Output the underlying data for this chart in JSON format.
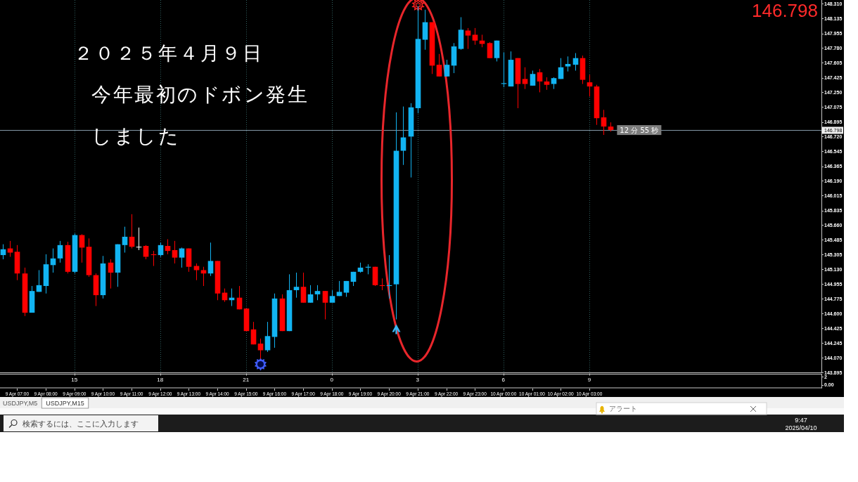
{
  "chart_data": [
    {
      "type": "candlestick",
      "title": "２０２５年４月９日",
      "subtitle": "今年最初のドボン発生しました",
      "x": [
        "2025-04-09T06:30",
        "2025-04-09T06:45",
        "2025-04-09T07:00",
        "2025-04-09T07:15",
        "2025-04-09T07:30",
        "2025-04-09T07:45",
        "2025-04-09T08:00",
        "2025-04-09T08:15",
        "2025-04-09T08:30",
        "2025-04-09T08:45",
        "2025-04-09T09:00",
        "2025-04-09T09:15",
        "2025-04-09T09:30",
        "2025-04-09T09:45",
        "2025-04-09T10:00",
        "2025-04-09T10:15",
        "2025-04-09T10:30",
        "2025-04-09T10:45",
        "2025-04-09T11:00",
        "2025-04-09T11:15",
        "2025-04-09T11:30",
        "2025-04-09T11:45",
        "2025-04-09T12:00",
        "2025-04-09T12:15",
        "2025-04-09T12:30",
        "2025-04-09T12:45",
        "2025-04-09T13:00",
        "2025-04-09T13:15",
        "2025-04-09T13:30",
        "2025-04-09T13:45",
        "2025-04-09T14:00",
        "2025-04-09T14:15",
        "2025-04-09T14:30",
        "2025-04-09T14:45",
        "2025-04-09T15:00",
        "2025-04-09T15:15",
        "2025-04-09T15:30",
        "2025-04-09T15:45",
        "2025-04-09T16:00",
        "2025-04-09T16:15",
        "2025-04-09T16:30",
        "2025-04-09T16:45",
        "2025-04-09T17:00",
        "2025-04-09T17:15",
        "2025-04-09T17:30",
        "2025-04-09T17:45",
        "2025-04-09T18:00",
        "2025-04-09T18:15",
        "2025-04-09T18:30",
        "2025-04-09T18:45",
        "2025-04-09T19:00",
        "2025-04-09T19:15",
        "2025-04-09T19:30",
        "2025-04-09T19:45",
        "2025-04-09T20:00",
        "2025-04-09T20:15",
        "2025-04-09T20:30",
        "2025-04-09T20:45",
        "2025-04-09T21:00",
        "2025-04-09T21:15",
        "2025-04-09T21:30",
        "2025-04-09T21:45",
        "2025-04-09T22:00",
        "2025-04-09T22:15",
        "2025-04-09T22:30",
        "2025-04-09T22:45",
        "2025-04-09T23:00",
        "2025-04-09T23:15",
        "2025-04-09T23:30",
        "2025-04-09T23:45",
        "2025-04-10T00:00",
        "2025-04-10T00:15",
        "2025-04-10T00:30",
        "2025-04-10T00:45",
        "2025-04-10T01:00",
        "2025-04-10T01:15",
        "2025-04-10T01:30",
        "2025-04-10T01:45",
        "2025-04-10T02:00",
        "2025-04-10T02:15",
        "2025-04-10T02:30",
        "2025-04-10T02:45",
        "2025-04-10T03:00",
        "2025-04-10T03:15",
        "2025-04-10T03:30",
        "2025-04-10T03:45"
      ],
      "ohlc": [
        [
          145.3,
          145.43,
          145.25,
          145.37
        ],
        [
          145.38,
          145.47,
          145.28,
          145.33
        ],
        [
          145.34,
          145.42,
          145.0,
          145.08
        ],
        [
          145.08,
          145.15,
          144.57,
          144.61
        ],
        [
          144.61,
          144.93,
          144.61,
          144.87
        ],
        [
          144.86,
          145.12,
          144.86,
          144.94
        ],
        [
          144.93,
          145.31,
          144.84,
          145.19
        ],
        [
          145.18,
          145.38,
          145.09,
          145.26
        ],
        [
          145.26,
          145.47,
          145.21,
          145.42
        ],
        [
          145.42,
          145.46,
          145.08,
          145.1
        ],
        [
          145.1,
          145.56,
          145.08,
          145.54
        ],
        [
          145.54,
          145.55,
          145.21,
          145.39
        ],
        [
          145.4,
          145.5,
          145.04,
          145.06
        ],
        [
          145.06,
          145.08,
          144.69,
          144.82
        ],
        [
          144.82,
          145.29,
          144.78,
          145.2
        ],
        [
          145.21,
          145.25,
          144.9,
          145.09
        ],
        [
          145.09,
          145.43,
          144.92,
          145.43
        ],
        [
          145.42,
          145.64,
          145.33,
          145.52
        ],
        [
          145.52,
          145.79,
          145.38,
          145.4
        ],
        [
          145.4,
          145.63,
          145.36,
          145.4
        ],
        [
          145.41,
          145.42,
          145.25,
          145.28
        ],
        [
          145.31,
          145.35,
          145.17,
          145.3
        ],
        [
          145.3,
          145.45,
          145.28,
          145.42
        ],
        [
          145.41,
          145.49,
          145.31,
          145.35
        ],
        [
          145.36,
          145.47,
          145.2,
          145.27
        ],
        [
          145.27,
          145.39,
          145.15,
          145.38
        ],
        [
          145.38,
          145.38,
          145.1,
          145.16
        ],
        [
          145.17,
          145.2,
          145.0,
          145.12
        ],
        [
          145.12,
          145.16,
          144.93,
          145.08
        ],
        [
          145.08,
          145.45,
          145.05,
          145.23
        ],
        [
          145.23,
          145.23,
          144.76,
          144.84
        ],
        [
          144.85,
          144.9,
          144.74,
          144.76
        ],
        [
          144.76,
          144.9,
          144.69,
          144.79
        ],
        [
          144.79,
          144.93,
          144.65,
          144.65
        ],
        [
          144.66,
          144.66,
          144.39,
          144.39
        ],
        [
          144.41,
          144.5,
          144.23,
          144.23
        ],
        [
          144.24,
          144.3,
          144.06,
          144.16
        ],
        [
          144.16,
          144.5,
          144.14,
          144.33
        ],
        [
          144.32,
          144.84,
          144.19,
          144.78
        ],
        [
          144.78,
          144.83,
          144.39,
          144.39
        ],
        [
          144.39,
          145.07,
          144.39,
          144.88
        ],
        [
          144.88,
          145.09,
          144.79,
          144.92
        ],
        [
          144.92,
          145.09,
          144.73,
          144.73
        ],
        [
          144.73,
          144.94,
          144.73,
          144.83
        ],
        [
          144.83,
          144.94,
          144.76,
          144.87
        ],
        [
          144.87,
          144.87,
          144.53,
          144.73
        ],
        [
          144.73,
          144.88,
          144.73,
          144.81
        ],
        [
          144.81,
          144.99,
          144.81,
          144.86
        ],
        [
          144.85,
          144.99,
          144.8,
          144.99
        ],
        [
          144.98,
          145.1,
          144.93,
          145.1
        ],
        [
          145.1,
          145.21,
          145.09,
          145.15
        ],
        [
          145.15,
          145.19,
          145.07,
          145.16
        ],
        [
          145.16,
          145.16,
          144.93,
          144.94
        ],
        [
          144.94,
          145.02,
          144.88,
          144.93
        ],
        [
          144.93,
          145.3,
          144.78,
          144.94
        ],
        [
          144.95,
          147.01,
          144.53,
          146.55
        ],
        [
          146.55,
          147.08,
          146.38,
          146.71
        ],
        [
          146.72,
          147.12,
          146.23,
          147.07
        ],
        [
          147.06,
          148.28,
          147.0,
          147.89
        ],
        [
          147.88,
          148.24,
          147.76,
          148.09
        ],
        [
          148.09,
          148.09,
          147.47,
          147.57
        ],
        [
          147.58,
          147.71,
          147.44,
          147.44
        ],
        [
          147.44,
          147.64,
          147.44,
          147.58
        ],
        [
          147.57,
          147.84,
          147.48,
          147.8
        ],
        [
          147.77,
          148.15,
          147.76,
          148.0
        ],
        [
          147.99,
          148.02,
          147.77,
          147.93
        ],
        [
          147.94,
          148.02,
          147.82,
          147.87
        ],
        [
          147.87,
          147.94,
          147.79,
          147.83
        ],
        [
          147.84,
          147.85,
          147.66,
          147.66
        ],
        [
          147.66,
          147.87,
          147.62,
          147.87
        ],
        [
          147.35,
          147.73,
          147.31,
          147.36
        ],
        [
          147.32,
          147.74,
          147.32,
          147.64
        ],
        [
          147.66,
          147.66,
          147.06,
          147.35
        ],
        [
          147.41,
          147.55,
          147.29,
          147.35
        ],
        [
          147.33,
          147.51,
          147.33,
          147.47
        ],
        [
          147.49,
          147.53,
          147.25,
          147.38
        ],
        [
          147.38,
          147.43,
          147.28,
          147.34
        ],
        [
          147.35,
          147.43,
          147.29,
          147.42
        ],
        [
          147.41,
          147.66,
          147.41,
          147.55
        ],
        [
          147.56,
          147.68,
          147.5,
          147.59
        ],
        [
          147.58,
          147.72,
          147.51,
          147.66
        ],
        [
          147.66,
          147.69,
          147.35,
          147.4
        ],
        [
          147.37,
          147.46,
          147.2,
          147.32
        ],
        [
          147.32,
          147.34,
          146.86,
          146.94
        ],
        [
          146.95,
          147.04,
          146.74,
          146.84
        ],
        [
          146.84,
          146.89,
          146.78,
          146.8
        ]
      ],
      "colors": [
        "#12b4f2",
        "#ff0000",
        "#ff0000",
        "#ff0000",
        "#12b4f2",
        "#12b4f2",
        "#12b4f2",
        "#12b4f2",
        "#12b4f2",
        "#ff0000",
        "#12b4f2",
        "#ff0000",
        "#ff0000",
        "#ff0000",
        "#12b4f2",
        "#ff0000",
        "#12b4f2",
        "#12b4f2",
        "#ff0000",
        "#ffffff",
        "#ff0000",
        "#ff0000",
        "#12b4f2",
        "#ff0000",
        "#ff0000",
        "#12b4f2",
        "#ff0000",
        "#ff0000",
        "#ff0000",
        "#12b4f2",
        "#ff0000",
        "#ff0000",
        "#12b4f2",
        "#ff0000",
        "#ff0000",
        "#ff0000",
        "#ff0000",
        "#12b4f2",
        "#12b4f2",
        "#ff0000",
        "#12b4f2",
        "#12b4f2",
        "#ff0000",
        "#12b4f2",
        "#12b4f2",
        "#ff0000",
        "#12b4f2",
        "#12b4f2",
        "#12b4f2",
        "#12b4f2",
        "#12b4f2",
        "#12b4f2",
        "#ff0000",
        "#ff0000",
        "#12b4f2",
        "#12b4f2",
        "#12b4f2",
        "#12b4f2",
        "#12b4f2",
        "#12b4f2",
        "#ff0000",
        "#ff0000",
        "#12b4f2",
        "#12b4f2",
        "#12b4f2",
        "#ff0000",
        "#ff0000",
        "#ff0000",
        "#ff0000",
        "#12b4f2",
        "#12b4f2",
        "#12b4f2",
        "#ff0000",
        "#ff0000",
        "#12b4f2",
        "#ff0000",
        "#ff0000",
        "#12b4f2",
        "#12b4f2",
        "#12b4f2",
        "#12b4f2",
        "#ff0000",
        "#ff0000",
        "#ff0000",
        "#ff0000",
        "#ff0000"
      ],
      "xlim": [
        "2025-04-09T06:24",
        "2025-04-10T11:07"
      ],
      "xticks": [
        {
          "value": "2025-04-09T09:00",
          "label": null
        },
        {
          "value": "2025-04-09T12:00",
          "label": null
        },
        {
          "value": "2025-04-09T15:00",
          "label": null
        },
        {
          "value": "2025-04-09T18:00",
          "label": null
        },
        {
          "value": "2025-04-09T21:00",
          "label": null
        },
        {
          "value": "2025-04-10T00:00",
          "label": null
        },
        {
          "value": "2025-04-10T03:00",
          "label": null
        }
      ],
      "ylim": [
        143.895,
        148.356
      ],
      "yticks": [
        {
          "value": 148.31,
          "label": "148.310"
        },
        148.135,
        147.955,
        {
          "value": 147.78,
          "label": "147.780"
        },
        147.605,
        147.425,
        {
          "value": 147.25,
          "label": "147.250"
        },
        147.075,
        146.895,
        {
          "value": 146.72,
          "label": "146.720"
        },
        146.545,
        146.365,
        {
          "value": 146.19,
          "label": "146.190"
        },
        146.015,
        145.835,
        {
          "value": 145.66,
          "label": "145.660"
        },
        145.485,
        145.305,
        {
          "value": 145.13,
          "label": "145.130"
        },
        144.955,
        144.775,
        {
          "value": 144.6,
          "label": "144.600"
        },
        144.425,
        144.245,
        {
          "value": 144.07,
          "label": "144.070"
        },
        143.895
      ],
      "tick_labels": "y",
      "grid": "x",
      "ref_lines": [
        {
          "axis": "y",
          "value": 146.798,
          "label": "146.798",
          "color": "#8497a6"
        }
      ],
      "annotations": [
        "146.798",
        "12 分 55 秒",
        "USDJPY,M5",
        "USDJPY,M15",
        "アラート",
        "検索するには、ここに入力します",
        "9:47",
        "2025/04/10"
      ]
    },
    {
      "type": "line",
      "xlim": [
        "2025-04-09T06:24",
        "2025-04-10T11:07"
      ],
      "xticks": [
        {
          "value": "2025-04-09T07:00",
          "label": "9 Apr 07:00"
        },
        {
          "value": "2025-04-09T08:00",
          "label": "9 Apr 08:00"
        },
        {
          "value": "2025-04-09T09:00",
          "label": "9 Apr 09:00"
        },
        {
          "value": "2025-04-09T10:00",
          "label": "9 Apr 10:00"
        },
        {
          "value": "2025-04-09T11:00",
          "label": "9 Apr 11:00"
        },
        {
          "value": "2025-04-09T12:00",
          "label": "9 Apr 12:00"
        },
        {
          "value": "2025-04-09T13:00",
          "label": "9 Apr 13:00"
        },
        {
          "value": "2025-04-09T14:00",
          "label": "9 Apr 14:00"
        },
        {
          "value": "2025-04-09T15:00",
          "label": "9 Apr 15:00"
        },
        {
          "value": "2025-04-09T16:00",
          "label": "9 Apr 16:00"
        },
        {
          "value": "2025-04-09T17:00",
          "label": "9 Apr 17:00"
        },
        {
          "value": "2025-04-09T18:00",
          "label": "9 Apr 18:00"
        },
        {
          "value": "2025-04-09T19:00",
          "label": "9 Apr 19:00"
        },
        {
          "value": "2025-04-09T20:00",
          "label": "9 Apr 20:00"
        },
        {
          "value": "2025-04-09T21:00",
          "label": "9 Apr 21:00"
        },
        {
          "value": "2025-04-09T22:00",
          "label": "9 Apr 22:00"
        },
        {
          "value": "2025-04-09T23:00",
          "label": "9 Apr 23:00"
        },
        {
          "value": "2025-04-10T00:00",
          "label": "10 Apr 00:00"
        },
        {
          "value": "2025-04-10T01:00",
          "label": "10 Apr 01:00"
        },
        {
          "value": "2025-04-10T02:00",
          "label": "10 Apr 02:00"
        },
        {
          "value": "2025-04-10T03:00",
          "label": "10 Apr 03:00"
        }
      ],
      "x2lim": [
        "2025-04-09T06:24",
        "2025-04-10T11:07"
      ],
      "x2ticks": [
        {
          "value": "2025-04-09T09:00",
          "label": "15"
        },
        {
          "value": "2025-04-09T12:00",
          "label": "18"
        },
        {
          "value": "2025-04-09T15:00",
          "label": "21"
        },
        {
          "value": "2025-04-09T18:00",
          "label": "0"
        },
        {
          "value": "2025-04-09T21:00",
          "label": "3"
        },
        {
          "value": "2025-04-10T00:00",
          "label": "6"
        },
        {
          "value": "2025-04-10T03:00",
          "label": "9"
        }
      ],
      "ylim": [
        -0.6,
        2.6
      ],
      "yticks": [
        {
          "value": 0,
          "label": "0.00"
        },
        2
      ]
    }
  ]
}
